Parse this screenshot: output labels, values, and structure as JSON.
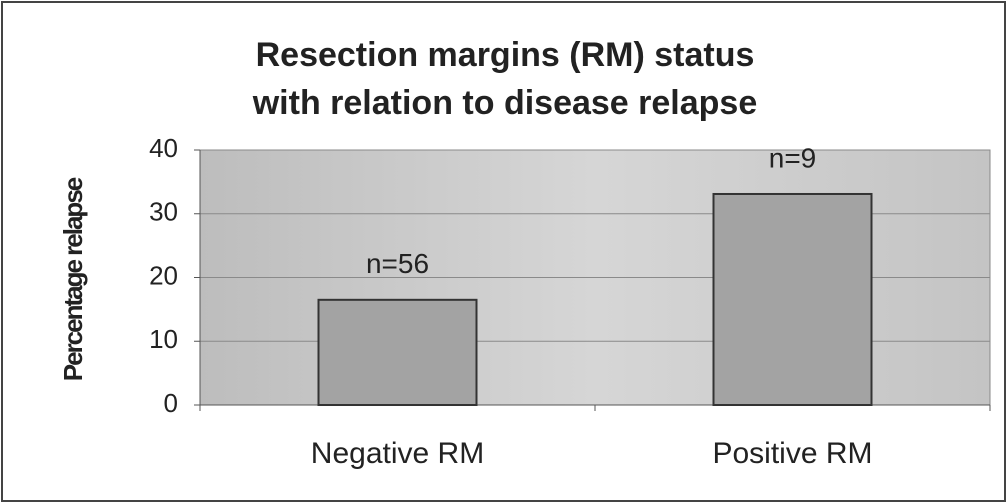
{
  "chart_data": {
    "type": "bar",
    "title": [
      "Resection margins (RM) status",
      "with relation to disease relapse"
    ],
    "y_label": "Percentage relapse",
    "categories": [
      "Negative RM",
      "Positive RM"
    ],
    "values": [
      16.5,
      33.1
    ],
    "bar_labels": [
      "n=56",
      "n=9"
    ],
    "color": "#a3a3a3",
    "ylim": [
      0,
      40
    ],
    "yticks": [
      0,
      10,
      20,
      30,
      40
    ],
    "grid": true
  }
}
